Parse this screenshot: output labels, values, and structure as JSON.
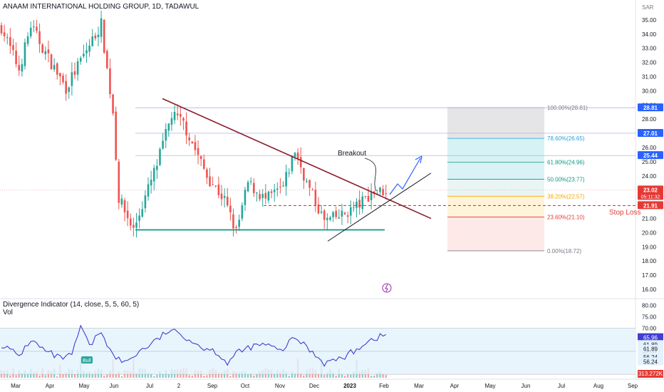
{
  "header": {
    "title": "ANAAM INTERNATIONAL HOLDING GROUP, 1D, TADAWUL",
    "currency": "SAR"
  },
  "indicator": {
    "title": "Divergence Indicator (14, close, 5, 5, 60, 5)",
    "vol_label": "Vol"
  },
  "annotations": {
    "breakout": "Breakout",
    "stop_loss": "Stop Loss",
    "bull": "Bull"
  },
  "colors": {
    "trendline": "#8b1a2b",
    "support": "#089981",
    "stop": "#e53935",
    "rsi": "#3f3fd1",
    "up": "#26a69a",
    "down": "#ef5350",
    "arrow": "#2962ff"
  },
  "chart_data": {
    "type": "candlestick",
    "x_ticks": [
      "Mar",
      "Apr",
      "May",
      "Jun",
      "Jul",
      "2",
      "Sep",
      "Oct",
      "Nov",
      "Dec",
      "2023",
      "Feb",
      "Mar",
      "Apr",
      "May",
      "Jun",
      "Jul",
      "Aug",
      "Sep"
    ],
    "y_ticks": [
      "35.00",
      "34.00",
      "33.00",
      "32.00",
      "31.00",
      "30.00",
      "29.00",
      "28.00",
      "27.00",
      "26.00",
      "25.00",
      "24.00",
      "23.00",
      "22.00",
      "21.00",
      "20.00",
      "19.00",
      "18.00",
      "17.00",
      "16.00"
    ],
    "ylim": [
      15.5,
      35.7
    ],
    "price_path": [
      {
        "t": 0,
        "p": 34.5
      },
      {
        "t": 6,
        "p": 31.5
      },
      {
        "t": 10,
        "p": 34.6
      },
      {
        "t": 16,
        "p": 32.3
      },
      {
        "t": 22,
        "p": 30.2
      },
      {
        "t": 28,
        "p": 32.5
      },
      {
        "t": 34,
        "p": 34.7
      },
      {
        "t": 36,
        "p": 31.5
      },
      {
        "t": 38,
        "p": 28.5
      },
      {
        "t": 40,
        "p": 22.4
      },
      {
        "t": 45,
        "p": 20.2
      },
      {
        "t": 53,
        "p": 24.8
      },
      {
        "t": 58,
        "p": 28.3
      },
      {
        "t": 62,
        "p": 27.7
      },
      {
        "t": 70,
        "p": 24.0
      },
      {
        "t": 76,
        "p": 22.3
      },
      {
        "t": 80,
        "p": 20.0
      },
      {
        "t": 84,
        "p": 23.5
      },
      {
        "t": 90,
        "p": 22.3
      },
      {
        "t": 96,
        "p": 23.2
      },
      {
        "t": 100,
        "p": 25.8
      },
      {
        "t": 104,
        "p": 23.5
      },
      {
        "t": 110,
        "p": 20.8
      },
      {
        "t": 116,
        "p": 21.2
      },
      {
        "t": 122,
        "p": 22.0
      },
      {
        "t": 126,
        "p": 22.8
      },
      {
        "t": 131,
        "p": 23.0
      }
    ],
    "trendline": {
      "start": [
        "Jul",
        29.4
      ],
      "end": [
        "Mar",
        21.0
      ]
    },
    "support": {
      "value": 20.2,
      "from": "Jul",
      "to": "Jan"
    },
    "stop_loss": 21.91,
    "fibonacci": [
      {
        "level": "100.00%(28.81)",
        "price": 28.81
      },
      {
        "level": "78.60%(26.65)",
        "price": 26.65
      },
      {
        "level": "61.80%(24.96)",
        "price": 24.96
      },
      {
        "level": "50.00%(23.77)",
        "price": 23.77
      },
      {
        "level": "38.20%(22.57)",
        "price": 22.57
      },
      {
        "level": "23.60%(21.10)",
        "price": 21.1
      },
      {
        "level": "0.00%(18.72)",
        "price": 18.72
      }
    ],
    "price_badges": [
      {
        "text": "28.81",
        "price": 28.81
      },
      {
        "text": "27.01",
        "price": 27.01
      },
      {
        "text": "25.44",
        "price": 25.44
      },
      {
        "text": "23.02",
        "price": 23.02,
        "sub": "05:11:32"
      },
      {
        "text": "21.91",
        "price": 21.91
      }
    ],
    "oscillator": {
      "y_ticks": [
        "80.00",
        "75.00",
        "70.00",
        "65.00",
        "60.00",
        "55.00"
      ],
      "ylim": [
        51,
        82
      ],
      "badges": [
        "65.96",
        "61.89",
        "61.89",
        "56.24",
        "56.24"
      ],
      "volume_badge": "313.272K",
      "path": [
        {
          "t": 0,
          "v": 63
        },
        {
          "t": 6,
          "v": 58
        },
        {
          "t": 10,
          "v": 65
        },
        {
          "t": 15,
          "v": 60
        },
        {
          "t": 20,
          "v": 57
        },
        {
          "t": 24,
          "v": 58
        },
        {
          "t": 27,
          "v": 71
        },
        {
          "t": 30,
          "v": 62
        },
        {
          "t": 34,
          "v": 69
        },
        {
          "t": 38,
          "v": 58
        },
        {
          "t": 42,
          "v": 55
        },
        {
          "t": 47,
          "v": 60
        },
        {
          "t": 52,
          "v": 64
        },
        {
          "t": 57,
          "v": 69
        },
        {
          "t": 62,
          "v": 67
        },
        {
          "t": 68,
          "v": 62
        },
        {
          "t": 73,
          "v": 60
        },
        {
          "t": 77,
          "v": 55
        },
        {
          "t": 80,
          "v": 59
        },
        {
          "t": 85,
          "v": 62
        },
        {
          "t": 90,
          "v": 63
        },
        {
          "t": 95,
          "v": 60
        },
        {
          "t": 100,
          "v": 66
        },
        {
          "t": 104,
          "v": 62
        },
        {
          "t": 110,
          "v": 55
        },
        {
          "t": 116,
          "v": 57
        },
        {
          "t": 120,
          "v": 60
        },
        {
          "t": 124,
          "v": 64
        },
        {
          "t": 128,
          "v": 66
        },
        {
          "t": 131,
          "v": 67
        }
      ]
    }
  }
}
